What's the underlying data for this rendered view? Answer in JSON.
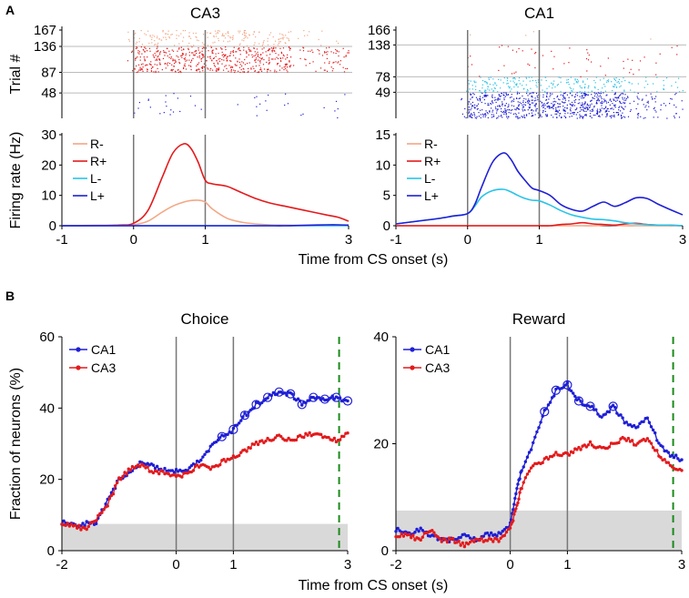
{
  "panel_a_label": "A",
  "panel_b_label": "B",
  "chart_data": [
    {
      "type": "scatter",
      "subtype": "raster",
      "title": "CA3",
      "ylabel": "Trial #",
      "xlim": [
        -1,
        3
      ],
      "ylim": [
        0,
        167
      ],
      "yticks": [
        48,
        87,
        136,
        167
      ],
      "event_lines": [
        0,
        1
      ],
      "block_lines": [
        48,
        87,
        136
      ],
      "blocks": [
        {
          "name": "L+",
          "color": "#1f1fd6",
          "trial_range": [
            1,
            48
          ],
          "density": 0.04
        },
        {
          "name": "L-",
          "color": "#29c3e8",
          "trial_range": [
            49,
            87
          ],
          "density": 0.0
        },
        {
          "name": "R+",
          "color": "#e31a1c",
          "trial_range": [
            88,
            136
          ],
          "density": 0.7
        },
        {
          "name": "R-",
          "color": "#f2a785",
          "trial_range": [
            137,
            167
          ],
          "density": 0.35
        }
      ]
    },
    {
      "type": "scatter",
      "subtype": "raster",
      "title": "CA1",
      "ylabel": "",
      "xlim": [
        -1,
        3
      ],
      "ylim": [
        0,
        166
      ],
      "yticks": [
        49,
        78,
        138,
        166
      ],
      "event_lines": [
        0,
        1
      ],
      "block_lines": [
        49,
        78,
        138
      ],
      "blocks": [
        {
          "name": "L+",
          "color": "#1f1fd6",
          "trial_range": [
            1,
            49
          ],
          "density": 0.9
        },
        {
          "name": "L-",
          "color": "#29c3e8",
          "trial_range": [
            50,
            78
          ],
          "density": 0.45
        },
        {
          "name": "R+",
          "color": "#e31a1c",
          "trial_range": [
            79,
            138
          ],
          "density": 0.05
        },
        {
          "name": "R-",
          "color": "#f2a785",
          "trial_range": [
            139,
            166
          ],
          "density": 0.02
        }
      ]
    },
    {
      "type": "line",
      "title": "",
      "xlabel": "Time from CS onset (s)",
      "ylabel": "Firing rate (Hz)",
      "xlim": [
        -1,
        3
      ],
      "ylim": [
        0,
        30
      ],
      "xticks": [
        -1,
        0,
        1,
        3
      ],
      "yticks": [
        0,
        10,
        20,
        30
      ],
      "event_lines": [
        0,
        1
      ],
      "legend_position": "top-left",
      "x": [
        -1,
        -0.5,
        -0.2,
        0,
        0.2,
        0.4,
        0.55,
        0.7,
        0.8,
        0.9,
        1.0,
        1.1,
        1.3,
        1.5,
        1.7,
        1.9,
        2.1,
        2.3,
        2.5,
        2.7,
        2.85,
        3
      ],
      "series": [
        {
          "name": "R-",
          "color": "#f2a785",
          "values": [
            0,
            0,
            0.1,
            0.3,
            1.5,
            4.5,
            6.5,
            7.8,
            8.3,
            8.4,
            7.8,
            5.5,
            2.5,
            1.2,
            0.6,
            0.3,
            0.2,
            0.1,
            0.1,
            0.1,
            0.1,
            0.1
          ]
        },
        {
          "name": "R+",
          "color": "#e31a1c",
          "values": [
            0,
            0.1,
            0.2,
            0.8,
            5,
            16,
            24,
            27,
            25.5,
            21,
            15,
            13.8,
            13,
            11,
            9,
            7.5,
            6.5,
            5.5,
            4.5,
            3.5,
            2.8,
            1.5
          ]
        },
        {
          "name": "L-",
          "color": "#29c3e8",
          "values": [
            0,
            0,
            0,
            0,
            0,
            0,
            0,
            0,
            0,
            0,
            0,
            0,
            0,
            0,
            0,
            0,
            0,
            0,
            0,
            0,
            0,
            0
          ]
        },
        {
          "name": "L+",
          "color": "#1f1fd6",
          "values": [
            0,
            0,
            0,
            0,
            0,
            0,
            0,
            0,
            0,
            0,
            0,
            0,
            0,
            0,
            0,
            0,
            0,
            0.1,
            0.2,
            0.3,
            0.3,
            0.2
          ]
        }
      ]
    },
    {
      "type": "line",
      "title": "",
      "xlabel": "",
      "ylabel": "",
      "xlim": [
        -1,
        3
      ],
      "ylim": [
        0,
        15
      ],
      "xticks": [
        -1,
        0,
        1,
        3
      ],
      "yticks": [
        0,
        5,
        10,
        15
      ],
      "event_lines": [
        0,
        1
      ],
      "legend_position": "top-left",
      "x": [
        -1,
        -0.8,
        -0.6,
        -0.4,
        -0.2,
        0,
        0.1,
        0.2,
        0.35,
        0.5,
        0.6,
        0.7,
        0.8,
        0.9,
        1.0,
        1.15,
        1.3,
        1.45,
        1.6,
        1.75,
        1.9,
        2.05,
        2.2,
        2.35,
        2.5,
        2.65,
        2.8,
        3
      ],
      "series": [
        {
          "name": "R-",
          "color": "#f2a785",
          "values": [
            0,
            0,
            0,
            0,
            0,
            0,
            0,
            0,
            0,
            0,
            0,
            0,
            0,
            0,
            0,
            0,
            0,
            0,
            0,
            0,
            0.1,
            0.1,
            0,
            0,
            0,
            0,
            0,
            0
          ]
        },
        {
          "name": "R+",
          "color": "#e31a1c",
          "values": [
            0,
            0,
            0,
            0,
            0,
            0,
            0,
            0,
            0,
            0,
            0,
            0,
            0,
            0,
            0,
            0,
            0.2,
            0.3,
            0.5,
            0.3,
            0.2,
            0.1,
            0.3,
            0.4,
            0.2,
            0.1,
            0.1,
            0
          ]
        },
        {
          "name": "L-",
          "color": "#29c3e8",
          "values": [
            0.3,
            0.6,
            0.9,
            1.2,
            1.6,
            2.0,
            3.2,
            4.8,
            5.8,
            6.0,
            5.6,
            5.0,
            4.5,
            4.2,
            4.1,
            3.4,
            2.5,
            1.8,
            1.4,
            1.1,
            1.0,
            0.8,
            0.5,
            0.3,
            0.2,
            0.1,
            0.1,
            0
          ]
        },
        {
          "name": "L+",
          "color": "#1f1fd6",
          "values": [
            0.3,
            0.6,
            0.9,
            1.2,
            1.6,
            2.0,
            3.5,
            6.5,
            10.5,
            12.0,
            11.0,
            9.0,
            7.5,
            6.2,
            5.8,
            5.0,
            3.5,
            2.7,
            2.4,
            3.2,
            3.9,
            3.2,
            3.8,
            4.6,
            4.5,
            3.6,
            2.8,
            1.8
          ]
        }
      ]
    },
    {
      "type": "line",
      "title": "Choice",
      "xlabel": "",
      "ylabel": "Fraction of neurons (%)",
      "xlim": [
        -2,
        3
      ],
      "ylim": [
        0,
        60
      ],
      "xticks": [
        -2,
        0,
        1,
        3
      ],
      "yticks": [
        0,
        20,
        40,
        60
      ],
      "event_lines": [
        0,
        1
      ],
      "dashed_line": 2.85,
      "shaded_band": [
        0,
        7.5
      ],
      "legend_position": "top-left",
      "x": [
        -2,
        -1.8,
        -1.6,
        -1.4,
        -1.2,
        -1.0,
        -0.8,
        -0.6,
        -0.4,
        -0.2,
        0,
        0.2,
        0.4,
        0.6,
        0.8,
        1.0,
        1.2,
        1.4,
        1.6,
        1.8,
        2.0,
        2.2,
        2.4,
        2.6,
        2.8,
        3.0
      ],
      "series": [
        {
          "name": "CA1",
          "color": "#1f1fd6",
          "values": [
            8,
            7,
            7.5,
            8,
            14,
            20,
            22,
            25,
            23.5,
            22.5,
            22.5,
            23,
            25,
            29,
            32,
            34,
            38,
            41,
            43,
            44.5,
            44,
            41,
            43,
            42.5,
            43,
            42
          ]
        },
        {
          "name": "CA3",
          "color": "#e31a1c",
          "values": [
            8,
            7,
            6,
            9,
            13,
            20,
            23,
            24,
            22,
            22,
            20.5,
            22,
            24,
            23,
            25,
            26,
            28,
            30,
            31,
            32,
            31,
            32,
            33,
            32,
            31,
            33
          ]
        }
      ]
    },
    {
      "type": "line",
      "title": "Reward",
      "xlabel": "",
      "ylabel": "",
      "xlim": [
        -2,
        3
      ],
      "ylim": [
        0,
        40
      ],
      "xticks": [
        -2,
        0,
        1,
        3
      ],
      "yticks": [
        0,
        20,
        40
      ],
      "event_lines": [
        0,
        1
      ],
      "dashed_line": 2.85,
      "shaded_band": [
        0,
        7.5
      ],
      "legend_position": "top-left",
      "x": [
        -2,
        -1.8,
        -1.6,
        -1.4,
        -1.2,
        -1.0,
        -0.8,
        -0.6,
        -0.4,
        -0.2,
        0,
        0.1,
        0.2,
        0.4,
        0.6,
        0.8,
        1.0,
        1.2,
        1.4,
        1.6,
        1.8,
        2.0,
        2.2,
        2.4,
        2.6,
        2.8,
        3.0
      ],
      "series": [
        {
          "name": "CA1",
          "color": "#1f1fd6",
          "values": [
            4,
            3,
            4,
            3,
            2,
            2,
            3,
            2,
            3,
            3,
            5,
            11,
            15,
            20,
            26,
            30,
            31,
            28,
            27,
            25,
            27,
            24,
            23,
            25,
            20,
            18,
            17
          ]
        },
        {
          "name": "CA3",
          "color": "#e31a1c",
          "values": [
            3,
            3,
            2,
            4,
            2,
            2,
            1,
            2,
            2,
            2,
            4,
            8,
            12,
            16,
            17,
            18,
            18,
            19,
            20,
            19,
            20,
            21,
            20,
            21,
            18,
            16,
            15
          ]
        }
      ]
    }
  ]
}
